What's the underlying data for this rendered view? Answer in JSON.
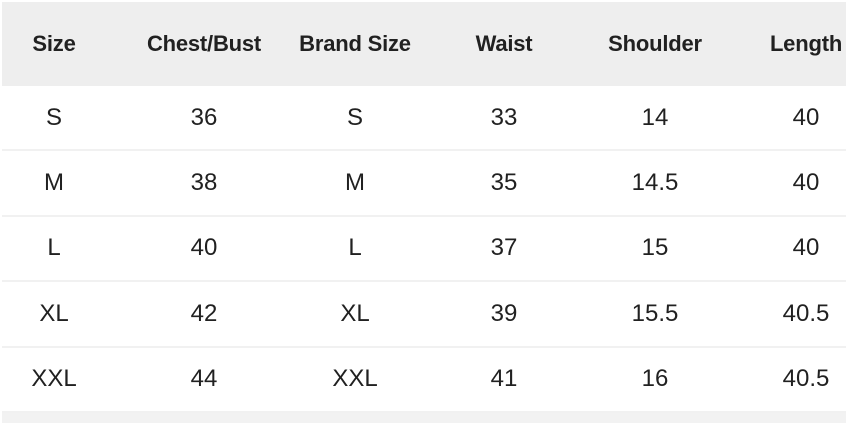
{
  "table": {
    "title": "size-chart",
    "unit_hint": "",
    "columns": [
      "Size",
      "Chest/Bust",
      "Brand Size",
      "Waist",
      "Shoulder",
      "Length"
    ],
    "rows": [
      [
        "S",
        "36",
        "S",
        "33",
        "14",
        "40"
      ],
      [
        "M",
        "38",
        "M",
        "35",
        "14.5",
        "40"
      ],
      [
        "L",
        "40",
        "L",
        "37",
        "15",
        "40"
      ],
      [
        "XL",
        "42",
        "XL",
        "39",
        "15.5",
        "40.5"
      ],
      [
        "XXL",
        "44",
        "XXL",
        "41",
        "16",
        "40.5"
      ]
    ]
  },
  "colors": {
    "header_bg": "#eeeeee",
    "row_border": "#f1f1f1",
    "strip_bg": "#f2f2f2",
    "text": "#212121"
  }
}
